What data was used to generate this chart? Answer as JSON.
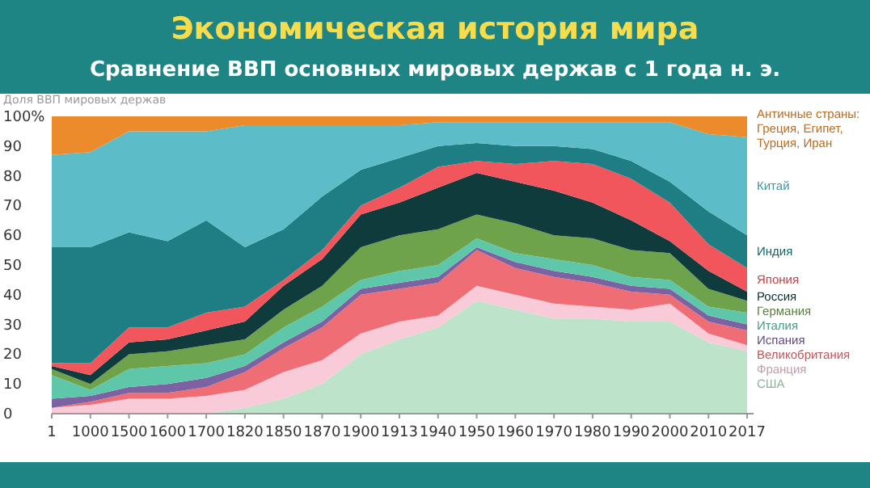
{
  "chart_data": {
    "type": "area",
    "stacked": true,
    "title": "Экономическая история мира",
    "subtitle": "Сравнение ВВП основных мировых держав с 1 года н. э.",
    "ylabel": "Доля ВВП мировых держав",
    "legend": "right",
    "categories": [
      "1",
      "1000",
      "1500",
      "1600",
      "1700",
      "1820",
      "1850",
      "1870",
      "1900",
      "1913",
      "1940",
      "1950",
      "1960",
      "1970",
      "1980",
      "1990",
      "2000",
      "2010",
      "2017"
    ],
    "ylim": [
      0,
      100
    ],
    "yticks": [
      0,
      10,
      20,
      30,
      40,
      50,
      60,
      70,
      80,
      90,
      {
        "value": 100,
        "label": "100%"
      }
    ],
    "series": [
      {
        "name": "США",
        "color": "#bde3cb",
        "values": [
          0,
          0,
          0,
          0,
          0,
          2,
          5,
          10,
          20,
          25,
          29,
          38,
          35,
          32,
          32,
          31,
          31,
          24,
          21
        ]
      },
      {
        "name": "Франция",
        "color": "#f9cad8",
        "values": [
          2,
          3,
          5,
          5,
          6,
          6,
          9,
          8,
          7,
          6,
          4,
          5,
          5,
          5,
          4,
          4,
          6,
          3,
          2
        ]
      },
      {
        "name": "Великобритания",
        "color": "#ef6e76",
        "values": [
          0,
          1,
          2,
          2,
          3,
          6,
          8,
          11,
          13,
          11,
          11,
          12,
          9,
          9,
          8,
          6,
          3,
          4,
          5
        ]
      },
      {
        "name": "Испания",
        "color": "#7b62a3",
        "values": [
          3,
          2,
          2,
          3,
          3,
          2,
          2,
          2,
          2,
          2,
          2,
          1,
          2,
          2,
          2,
          2,
          2,
          2,
          2
        ]
      },
      {
        "name": "Италия",
        "color": "#5fc7a9",
        "values": [
          8,
          2,
          6,
          6,
          5,
          4,
          5,
          5,
          3,
          4,
          4,
          3,
          3,
          4,
          4,
          3,
          3,
          3,
          4
        ]
      },
      {
        "name": "Германия",
        "color": "#6fa34b",
        "values": [
          2,
          2,
          5,
          5,
          6,
          5,
          6,
          7,
          11,
          12,
          12,
          8,
          10,
          8,
          9,
          9,
          9,
          6,
          4
        ]
      },
      {
        "name": "Россия",
        "color": "#0f3b3c",
        "values": [
          1,
          3,
          4,
          4,
          5,
          6,
          8,
          9,
          11,
          11,
          14,
          14,
          14,
          15,
          12,
          10,
          4,
          6,
          3
        ]
      },
      {
        "name": "Япония",
        "color": "#f2565d",
        "values": [
          1,
          4,
          5,
          4,
          6,
          5,
          2,
          3,
          3,
          5,
          7,
          4,
          6,
          10,
          13,
          14,
          13,
          9,
          8
        ]
      },
      {
        "name": "Индия",
        "color": "#1e7e84",
        "values": [
          39,
          39,
          32,
          29,
          31,
          20,
          17,
          18,
          12,
          10,
          7,
          6,
          6,
          5,
          5,
          6,
          7,
          11,
          11
        ]
      },
      {
        "name": "Китай",
        "color": "#5cbdc9",
        "values": [
          31,
          32,
          34,
          37,
          30,
          41,
          35,
          24,
          15,
          11,
          8,
          7,
          8,
          8,
          9,
          13,
          20,
          26,
          33
        ]
      },
      {
        "name": "Античные страны: Греция, Египет, Турция, Иран",
        "color": "#ec8b2b",
        "values": [
          13,
          12,
          5,
          5,
          5,
          3,
          3,
          3,
          3,
          3,
          2,
          2,
          2,
          2,
          2,
          2,
          2,
          6,
          7
        ]
      }
    ]
  }
}
